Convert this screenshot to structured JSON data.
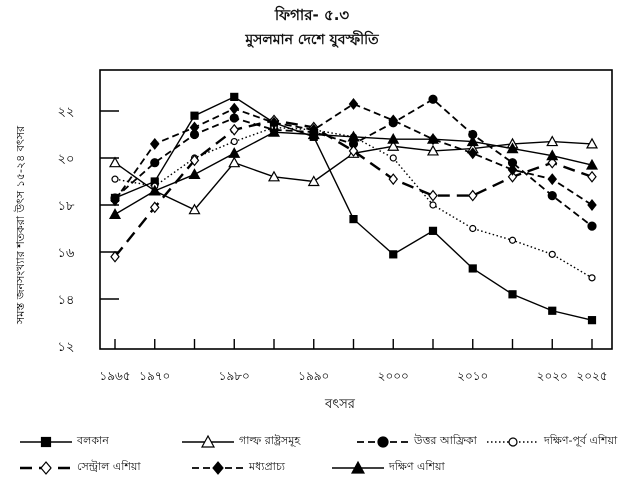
{
  "figure_label": "ফিগার- ৫.৩",
  "chart_data": {
    "type": "line",
    "title": "মুসলমান দেশে যুবস্ফীতি",
    "xlabel": "বৎসর",
    "ylabel": "সমস্ত জনসংখ্যার শতকরা উৎস ১৫-২৪ বৎসর",
    "xlim": [
      1965,
      2025
    ],
    "ylim": [
      12,
      23.5
    ],
    "x_ticks": [
      1965,
      1970,
      1975,
      1980,
      1985,
      1990,
      1995,
      2000,
      2005,
      2010,
      2015,
      2020,
      2025
    ],
    "x_tick_labels": [
      {
        "year": 1965,
        "label": "১৯৬৫"
      },
      {
        "year": 1970,
        "label": "১৯৭০"
      },
      {
        "year": 1980,
        "label": "১৯৮০"
      },
      {
        "year": 1990,
        "label": "১৯৯০"
      },
      {
        "year": 2000,
        "label": "২০০০"
      },
      {
        "year": 2010,
        "label": "২০১০"
      },
      {
        "year": 2020,
        "label": "২০২০"
      },
      {
        "year": 2025,
        "label": "২০২৫"
      }
    ],
    "y_ticks": [
      {
        "value": 22,
        "label": "২২"
      },
      {
        "value": 20,
        "label": "২০"
      },
      {
        "value": 18,
        "label": "১৮"
      },
      {
        "value": 16,
        "label": "১৬"
      },
      {
        "value": 14,
        "label": "১৪"
      },
      {
        "value": 12,
        "label": "১২"
      }
    ],
    "grid": false,
    "legend_position": "bottom",
    "x": [
      1965,
      1970,
      1975,
      1980,
      1985,
      1990,
      1995,
      2000,
      2005,
      2010,
      2015,
      2020,
      2025
    ],
    "series": [
      {
        "name": "বলকান",
        "line": "solid",
        "marker": "square-filled",
        "values": [
          18.3,
          19.0,
          21.8,
          22.6,
          21.5,
          20.9,
          17.4,
          15.9,
          16.9,
          15.3,
          14.2,
          13.5,
          13.1
        ]
      },
      {
        "name": "গাল্ফ রাষ্ট্রসমূহ",
        "line": "solid",
        "marker": "triangle-open",
        "values": [
          19.8,
          18.6,
          17.8,
          19.8,
          19.2,
          19.0,
          20.2,
          20.5,
          20.3,
          20.4,
          20.6,
          20.7,
          20.6
        ]
      },
      {
        "name": "উত্তর আফ্রিকা",
        "line": "dashed",
        "marker": "circle-filled",
        "values": [
          18.3,
          19.8,
          21.0,
          21.7,
          21.2,
          21.1,
          20.6,
          21.5,
          22.5,
          21.0,
          19.8,
          18.4,
          17.1
        ]
      },
      {
        "name": "দক্ষিণ-পূর্ব এশিয়া",
        "line": "dotted",
        "marker": "circle-open",
        "values": [
          19.1,
          18.8,
          20.0,
          20.7,
          21.3,
          21.2,
          20.9,
          20.0,
          18.0,
          17.0,
          16.5,
          15.9,
          14.9
        ]
      },
      {
        "name": "সেন্ট্রাল এশিয়া",
        "line": "longdash",
        "marker": "diamond-open",
        "values": [
          15.8,
          17.9,
          19.9,
          21.2,
          21.6,
          21.3,
          20.3,
          19.1,
          18.4,
          18.4,
          19.2,
          19.8,
          19.2
        ]
      },
      {
        "name": "মধ্যপ্রাচ্য",
        "line": "dashed",
        "marker": "diamond-filled",
        "values": [
          18.2,
          20.6,
          21.3,
          22.1,
          21.5,
          21.2,
          22.3,
          21.6,
          20.8,
          20.2,
          19.5,
          19.1,
          18.0
        ]
      },
      {
        "name": "দক্ষিণ এশিয়া",
        "line": "solid",
        "marker": "triangle-filled",
        "values": [
          17.6,
          18.6,
          19.3,
          20.2,
          21.1,
          21.0,
          20.9,
          20.8,
          20.8,
          20.7,
          20.4,
          20.1,
          19.7
        ]
      }
    ]
  }
}
